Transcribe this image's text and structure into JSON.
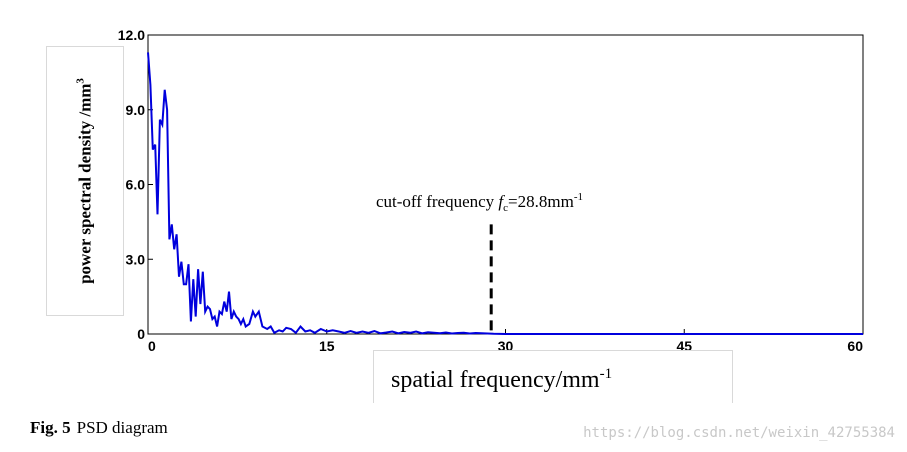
{
  "chart_data": {
    "type": "line",
    "xlim": [
      0,
      60
    ],
    "ylim": [
      0,
      12
    ],
    "x_ticks": [
      "0",
      "15",
      "30",
      "45",
      "60"
    ],
    "y_ticks": [
      "0",
      "3.0",
      "6.0",
      "9.0",
      "12.0"
    ],
    "grid": false,
    "ylabel": {
      "main": "power spectral density /mm",
      "sup": "3"
    },
    "xlabel": {
      "main": "spatial frequency/mm",
      "sup": "-1"
    },
    "line_color": "#0000dd",
    "series": [
      {
        "x": [
          0,
          0.2,
          0.4,
          0.6,
          0.8,
          1.0,
          1.2,
          1.4,
          1.6,
          1.8,
          2.0,
          2.2,
          2.4,
          2.6,
          2.8,
          3.0,
          3.2,
          3.4,
          3.6,
          3.8,
          4.0,
          4.2,
          4.4,
          4.6,
          4.8,
          5.0,
          5.2,
          5.4,
          5.6,
          5.8,
          6.0,
          6.2,
          6.4,
          6.6,
          6.8,
          7.0,
          7.2,
          7.4,
          7.6,
          7.8,
          8.0,
          8.2,
          8.5,
          8.8,
          9.0,
          9.3,
          9.6,
          10.0,
          10.3,
          10.6,
          11.0,
          11.3,
          11.6,
          12.0,
          12.4,
          12.8,
          13.2,
          13.6,
          14.0,
          14.5,
          15.0,
          15.5,
          16.0,
          16.5,
          17.0,
          17.5,
          18.0,
          18.5,
          19.0,
          19.5,
          20.0,
          20.5,
          21.0,
          21.5,
          22.0,
          22.5,
          23.0,
          23.5,
          24.0,
          24.5,
          25.0,
          25.5,
          26.0,
          26.5,
          27.0,
          27.5,
          28.0,
          28.5,
          29.0,
          30.0,
          35.0,
          40.0,
          45.0,
          50.0,
          55.0,
          60.0
        ],
        "y": [
          11.3,
          10.0,
          7.4,
          7.6,
          4.8,
          8.6,
          8.4,
          9.8,
          9.0,
          3.8,
          4.4,
          3.4,
          4.0,
          2.3,
          2.9,
          2.0,
          2.0,
          2.8,
          0.5,
          2.2,
          0.7,
          2.6,
          1.2,
          2.5,
          0.9,
          1.1,
          1.0,
          0.6,
          0.7,
          0.3,
          0.9,
          0.8,
          1.3,
          0.9,
          1.7,
          0.6,
          0.9,
          0.7,
          0.6,
          0.4,
          0.6,
          0.3,
          0.4,
          0.9,
          0.7,
          0.9,
          0.3,
          0.2,
          0.3,
          0.05,
          0.15,
          0.1,
          0.25,
          0.2,
          0.05,
          0.3,
          0.1,
          0.15,
          0.05,
          0.2,
          0.1,
          0.15,
          0.1,
          0.05,
          0.12,
          0.05,
          0.1,
          0.05,
          0.12,
          0.03,
          0.06,
          0.1,
          0.03,
          0.08,
          0.05,
          0.1,
          0.03,
          0.07,
          0.05,
          0.03,
          0.06,
          0.02,
          0.04,
          0.05,
          0.02,
          0.04,
          0.03,
          0.02,
          0.01,
          0.0,
          0.0,
          0.0,
          0.0,
          0.0,
          0.0,
          0.0
        ]
      }
    ],
    "annotation": {
      "text_before": "cut-off frequency ",
      "symbol": "f",
      "subscript": "c",
      "text_after": "=28.8mm",
      "sup": "-1",
      "x": 28.8,
      "y_top": 4.4,
      "style": "dashed"
    }
  },
  "caption": {
    "label": "Fig. 5",
    "text": "PSD diagram"
  },
  "watermark": "https://blog.csdn.net/weixin_42755384"
}
